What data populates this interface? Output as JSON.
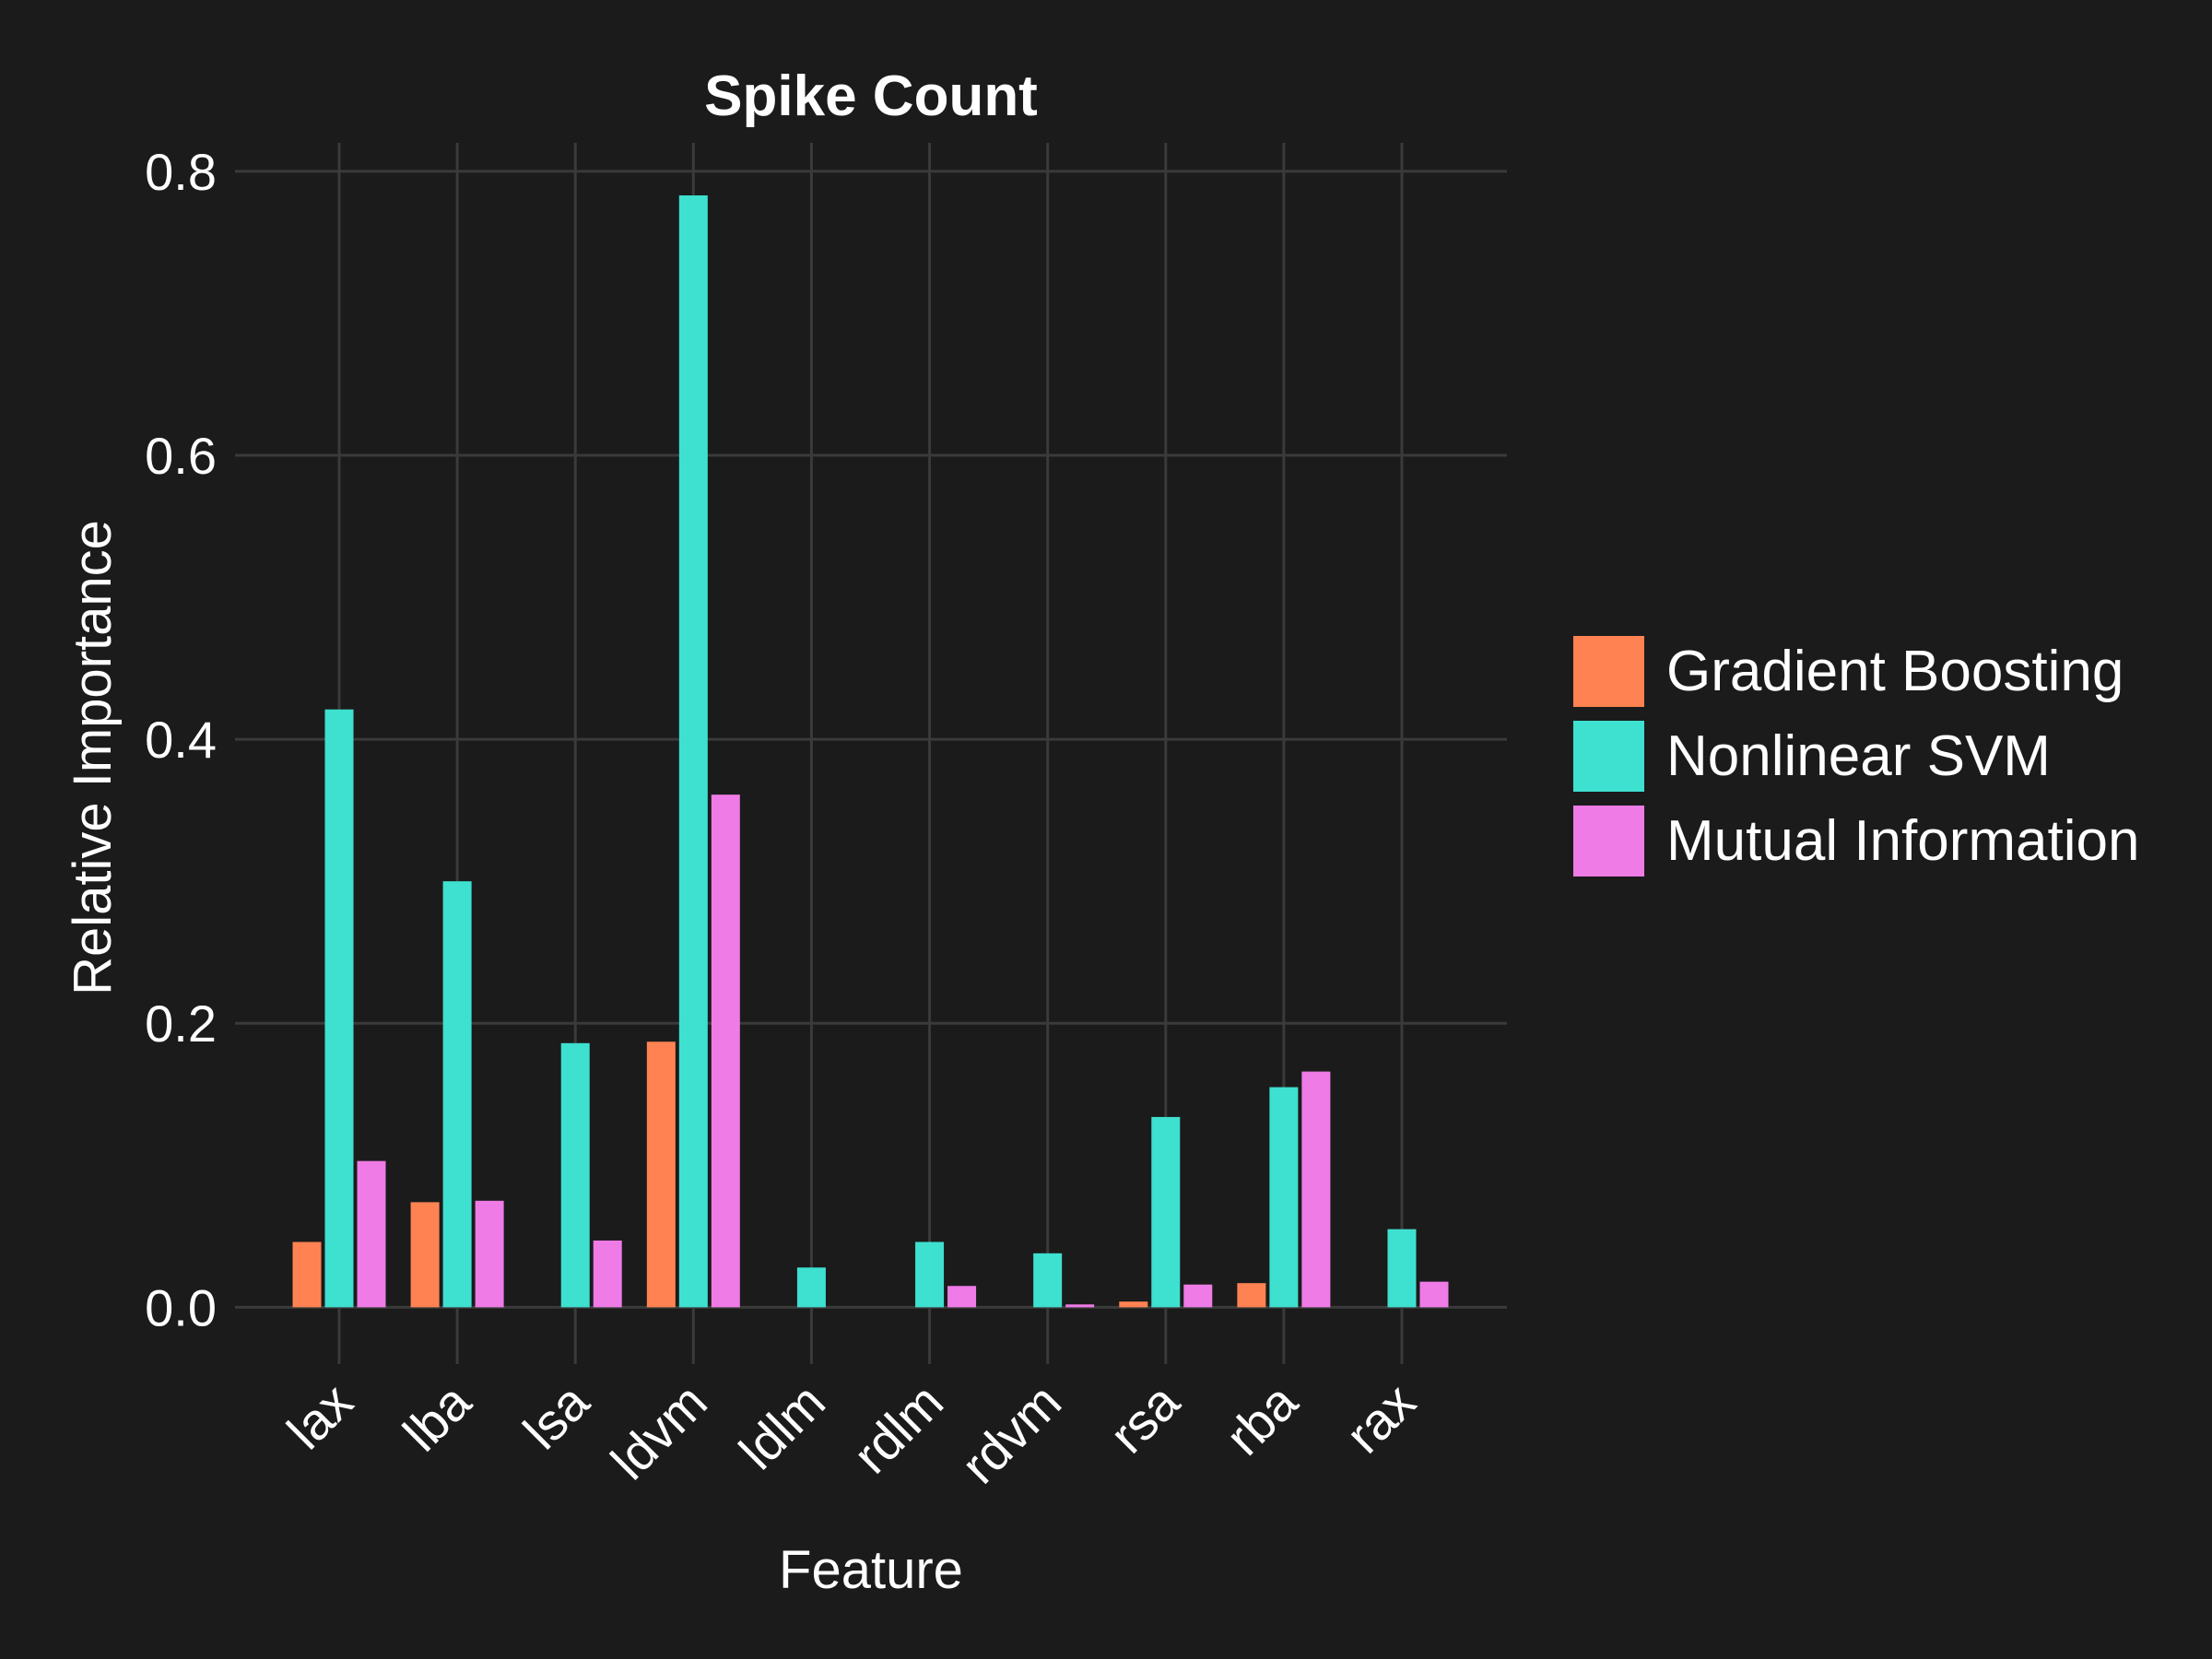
{
  "chart_data": {
    "type": "bar",
    "title": "Spike Count",
    "xlabel": "Feature",
    "ylabel": "Relative Importance",
    "categories": [
      "lax",
      "lba",
      "lsa",
      "ldvm",
      "ldlm",
      "rdlm",
      "rdvm",
      "rsa",
      "rba",
      "rax"
    ],
    "series": [
      {
        "name": "Gradient Boosting",
        "color": "#ff8352",
        "values": [
          0.046,
          0.074,
          0.0,
          0.187,
          0.0,
          0.0,
          0.0,
          0.004,
          0.017,
          0.0
        ]
      },
      {
        "name": "Nonlinear SVM",
        "color": "#3ee0d0",
        "values": [
          0.421,
          0.3,
          0.186,
          0.783,
          0.028,
          0.046,
          0.038,
          0.134,
          0.155,
          0.055
        ]
      },
      {
        "name": "Mutual Information",
        "color": "#ee7be6",
        "values": [
          0.103,
          0.075,
          0.047,
          0.361,
          0.0,
          0.015,
          0.002,
          0.016,
          0.166,
          0.018
        ]
      }
    ],
    "ylim": [
      -0.04,
      0.82
    ],
    "yticks": [
      "0.0",
      "0.2",
      "0.4",
      "0.6",
      "0.8"
    ],
    "grid": true,
    "legend_position": "right"
  }
}
